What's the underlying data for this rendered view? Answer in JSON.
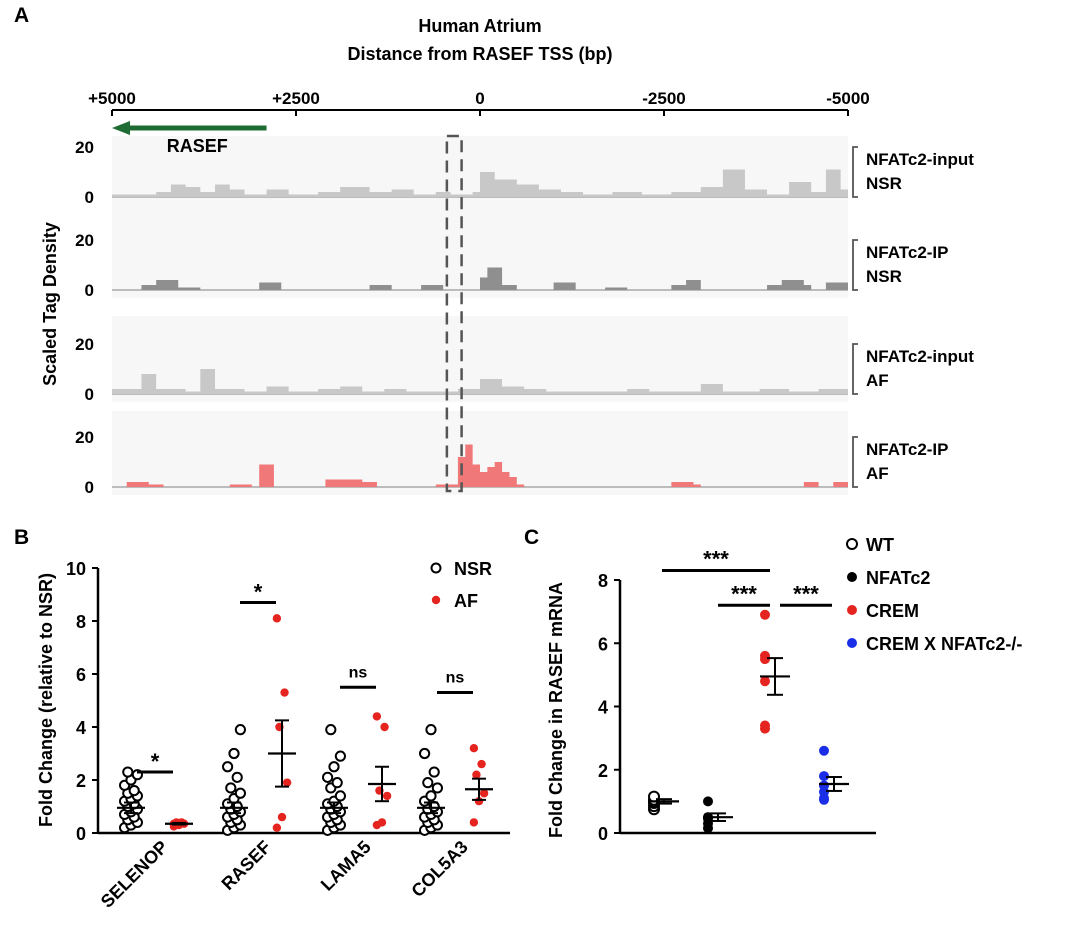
{
  "panel_labels": {
    "a": "A",
    "b": "B",
    "c": "C"
  },
  "chart_data": [
    {
      "type": "area",
      "panel": "A",
      "title": "Human Atrium",
      "xlabel": "Distance from RASEF TSS (bp)",
      "ylabel": "Scaled Tag Density",
      "x_ticks": [
        "+5000",
        "+2500",
        "0",
        "-2500",
        "-5000"
      ],
      "xlim": [
        5000,
        -5000
      ],
      "ylim": [
        0,
        20
      ],
      "y_ticks": [
        "20",
        "0"
      ],
      "gene": {
        "name": "RASEF",
        "start": 2900,
        "end": 5000,
        "color": "#1e6b34"
      },
      "highlight": {
        "from": 450,
        "to": 250
      },
      "tracks": [
        {
          "name": "NFATc2-input",
          "condition": "NSR",
          "color": "#c8c8c8",
          "profile": [
            [
              5000,
              1
            ],
            [
              4400,
              2
            ],
            [
              4200,
              5
            ],
            [
              4000,
              4
            ],
            [
              3800,
              2
            ],
            [
              3600,
              5
            ],
            [
              3400,
              3
            ],
            [
              3200,
              1
            ],
            [
              2900,
              3
            ],
            [
              2600,
              1
            ],
            [
              2200,
              2
            ],
            [
              1900,
              4
            ],
            [
              1500,
              2
            ],
            [
              1200,
              3
            ],
            [
              900,
              1
            ],
            [
              600,
              2
            ],
            [
              400,
              1
            ],
            [
              100,
              2
            ],
            [
              0,
              10
            ],
            [
              -200,
              7
            ],
            [
              -500,
              5
            ],
            [
              -800,
              3
            ],
            [
              -1100,
              2
            ],
            [
              -1400,
              1
            ],
            [
              -1800,
              2
            ],
            [
              -2200,
              1
            ],
            [
              -2600,
              2
            ],
            [
              -3000,
              4
            ],
            [
              -3300,
              11
            ],
            [
              -3600,
              3
            ],
            [
              -3900,
              1
            ],
            [
              -4200,
              6
            ],
            [
              -4500,
              2
            ],
            [
              -4700,
              11
            ],
            [
              -4900,
              3
            ],
            [
              -5000,
              1
            ]
          ]
        },
        {
          "name": "NFATc2-IP",
          "condition": "NSR",
          "color": "#8f8f8f",
          "profile": [
            [
              5000,
              0
            ],
            [
              4600,
              2
            ],
            [
              4400,
              4
            ],
            [
              4100,
              1
            ],
            [
              3800,
              0
            ],
            [
              3000,
              3
            ],
            [
              2700,
              0
            ],
            [
              1500,
              2
            ],
            [
              1200,
              0
            ],
            [
              800,
              2
            ],
            [
              500,
              0
            ],
            [
              0,
              5
            ],
            [
              -100,
              9
            ],
            [
              -300,
              2
            ],
            [
              -500,
              0
            ],
            [
              -1000,
              3
            ],
            [
              -1300,
              0
            ],
            [
              -1700,
              1
            ],
            [
              -2000,
              0
            ],
            [
              -2600,
              2
            ],
            [
              -2800,
              4
            ],
            [
              -3000,
              0
            ],
            [
              -3900,
              2
            ],
            [
              -4100,
              4
            ],
            [
              -4400,
              2
            ],
            [
              -4500,
              0
            ],
            [
              -4700,
              3
            ],
            [
              -5000,
              0
            ]
          ]
        },
        {
          "name": "NFATc2-input",
          "condition": "AF",
          "color": "#c8c8c8",
          "profile": [
            [
              5000,
              2
            ],
            [
              4600,
              8
            ],
            [
              4400,
              2
            ],
            [
              4000,
              1
            ],
            [
              3800,
              10
            ],
            [
              3600,
              2
            ],
            [
              3200,
              1
            ],
            [
              2900,
              3
            ],
            [
              2600,
              1
            ],
            [
              2200,
              2
            ],
            [
              1900,
              3
            ],
            [
              1600,
              1
            ],
            [
              1300,
              2
            ],
            [
              1000,
              1
            ],
            [
              600,
              1
            ],
            [
              300,
              2
            ],
            [
              0,
              6
            ],
            [
              -300,
              3
            ],
            [
              -600,
              2
            ],
            [
              -900,
              1
            ],
            [
              -1400,
              1
            ],
            [
              -2000,
              2
            ],
            [
              -2300,
              1
            ],
            [
              -2700,
              1
            ],
            [
              -3000,
              4
            ],
            [
              -3300,
              1
            ],
            [
              -3800,
              2
            ],
            [
              -4200,
              1
            ],
            [
              -4600,
              2
            ],
            [
              -5000,
              1
            ]
          ]
        },
        {
          "name": "NFATc2-IP",
          "condition": "AF",
          "color": "#f07878",
          "profile": [
            [
              5000,
              0
            ],
            [
              4800,
              2
            ],
            [
              4500,
              1
            ],
            [
              4300,
              0
            ],
            [
              3400,
              1
            ],
            [
              3100,
              0
            ],
            [
              3000,
              9
            ],
            [
              2800,
              0
            ],
            [
              2100,
              3
            ],
            [
              1600,
              2
            ],
            [
              1400,
              0
            ],
            [
              600,
              1
            ],
            [
              300,
              12
            ],
            [
              200,
              17
            ],
            [
              100,
              9
            ],
            [
              0,
              6
            ],
            [
              -100,
              8
            ],
            [
              -200,
              10
            ],
            [
              -300,
              6
            ],
            [
              -400,
              4
            ],
            [
              -500,
              1
            ],
            [
              -600,
              0
            ],
            [
              -2600,
              2
            ],
            [
              -2900,
              1
            ],
            [
              -3000,
              0
            ],
            [
              -4400,
              2
            ],
            [
              -4600,
              0
            ],
            [
              -4800,
              2
            ],
            [
              -5000,
              0
            ]
          ]
        }
      ]
    },
    {
      "type": "scatter",
      "panel": "B",
      "ylabel": "Fold Change (relative to NSR)",
      "ylim": [
        0,
        10
      ],
      "y_ticks": [
        0,
        2,
        4,
        6,
        8,
        10
      ],
      "categories": [
        "SELENOP",
        "RASEF",
        "LAMA5",
        "COL5A3"
      ],
      "legend": [
        {
          "label": "NSR",
          "marker": "open-circle",
          "color": "#000000"
        },
        {
          "label": "AF",
          "marker": "filled-circle",
          "color": "#e52420"
        }
      ],
      "series": [
        {
          "name": "NSR",
          "mean": [
            0.95,
            0.95,
            0.95,
            0.95
          ],
          "sem": [
            0.2,
            0.2,
            0.2,
            0.2
          ],
          "values": [
            [
              0.2,
              0.3,
              0.4,
              0.5,
              0.6,
              0.7,
              0.8,
              0.9,
              1.0,
              1.1,
              1.2,
              1.3,
              1.4,
              1.5,
              1.6,
              1.8,
              2.0,
              2.2,
              2.3
            ],
            [
              0.1,
              0.2,
              0.3,
              0.4,
              0.5,
              0.6,
              0.7,
              0.8,
              0.9,
              1.0,
              1.1,
              1.3,
              1.5,
              1.7,
              2.1,
              2.5,
              3.0,
              3.9
            ],
            [
              0.1,
              0.2,
              0.3,
              0.4,
              0.5,
              0.6,
              0.7,
              0.8,
              0.9,
              1.0,
              1.1,
              1.2,
              1.4,
              1.7,
              1.9,
              2.1,
              2.5,
              2.9,
              3.9
            ],
            [
              0.1,
              0.2,
              0.3,
              0.4,
              0.5,
              0.6,
              0.7,
              0.8,
              0.9,
              1.0,
              1.2,
              1.4,
              1.7,
              1.9,
              2.3,
              3.0,
              3.9
            ]
          ]
        },
        {
          "name": "AF",
          "mean": [
            0.35,
            3.0,
            1.85,
            1.65
          ],
          "sem": [
            0.03,
            1.25,
            0.65,
            0.4
          ],
          "values": [
            [
              0.25,
              0.3,
              0.35,
              0.4,
              0.4,
              0.35
            ],
            [
              0.2,
              0.6,
              1.9,
              4.0,
              5.3,
              8.1
            ],
            [
              0.3,
              0.4,
              1.4,
              1.6,
              4.0,
              4.4
            ],
            [
              0.4,
              1.2,
              1.5,
              2.2,
              2.6,
              3.2
            ]
          ]
        }
      ],
      "significance": [
        "*",
        "*",
        "ns",
        "ns"
      ],
      "significance_y": [
        2.3,
        8.7,
        5.5,
        5.3
      ]
    },
    {
      "type": "scatter",
      "panel": "C",
      "ylabel": "Fold Change in RASEF mRNA",
      "ylim": [
        0,
        8
      ],
      "y_ticks": [
        0,
        2,
        4,
        6,
        8
      ],
      "groups": [
        {
          "name": "WT",
          "marker": "open-circle",
          "color": "#000000",
          "values": [
            0.75,
            0.85,
            0.95,
            1.0,
            1.05,
            1.15
          ],
          "mean": 1.0,
          "sem": 0.07
        },
        {
          "name": "NFATc2",
          "marker": "filled-circle",
          "color": "#000000",
          "values": [
            0.15,
            0.3,
            0.45,
            0.5,
            0.5,
            1.0
          ],
          "mean": 0.5,
          "sem": 0.12
        },
        {
          "name": "CREM",
          "marker": "filled-circle",
          "color": "#e52420",
          "values": [
            3.3,
            3.4,
            4.8,
            5.5,
            5.6,
            6.9
          ],
          "mean": 4.95,
          "sem": 0.58
        },
        {
          "name": "CREM X NFATc2-/-",
          "marker": "filled-circle",
          "color": "#1a2ee8",
          "values": [
            1.05,
            1.1,
            1.3,
            1.5,
            1.8,
            2.6
          ],
          "mean": 1.55,
          "sem": 0.22
        }
      ],
      "comparisons": [
        {
          "from": 0,
          "to": 2,
          "label": "***",
          "y": 8.3
        },
        {
          "from": 1,
          "to": 2,
          "label": "***",
          "y": 7.2
        },
        {
          "from": 2,
          "to": 3,
          "label": "***",
          "y": 7.2
        }
      ]
    }
  ]
}
